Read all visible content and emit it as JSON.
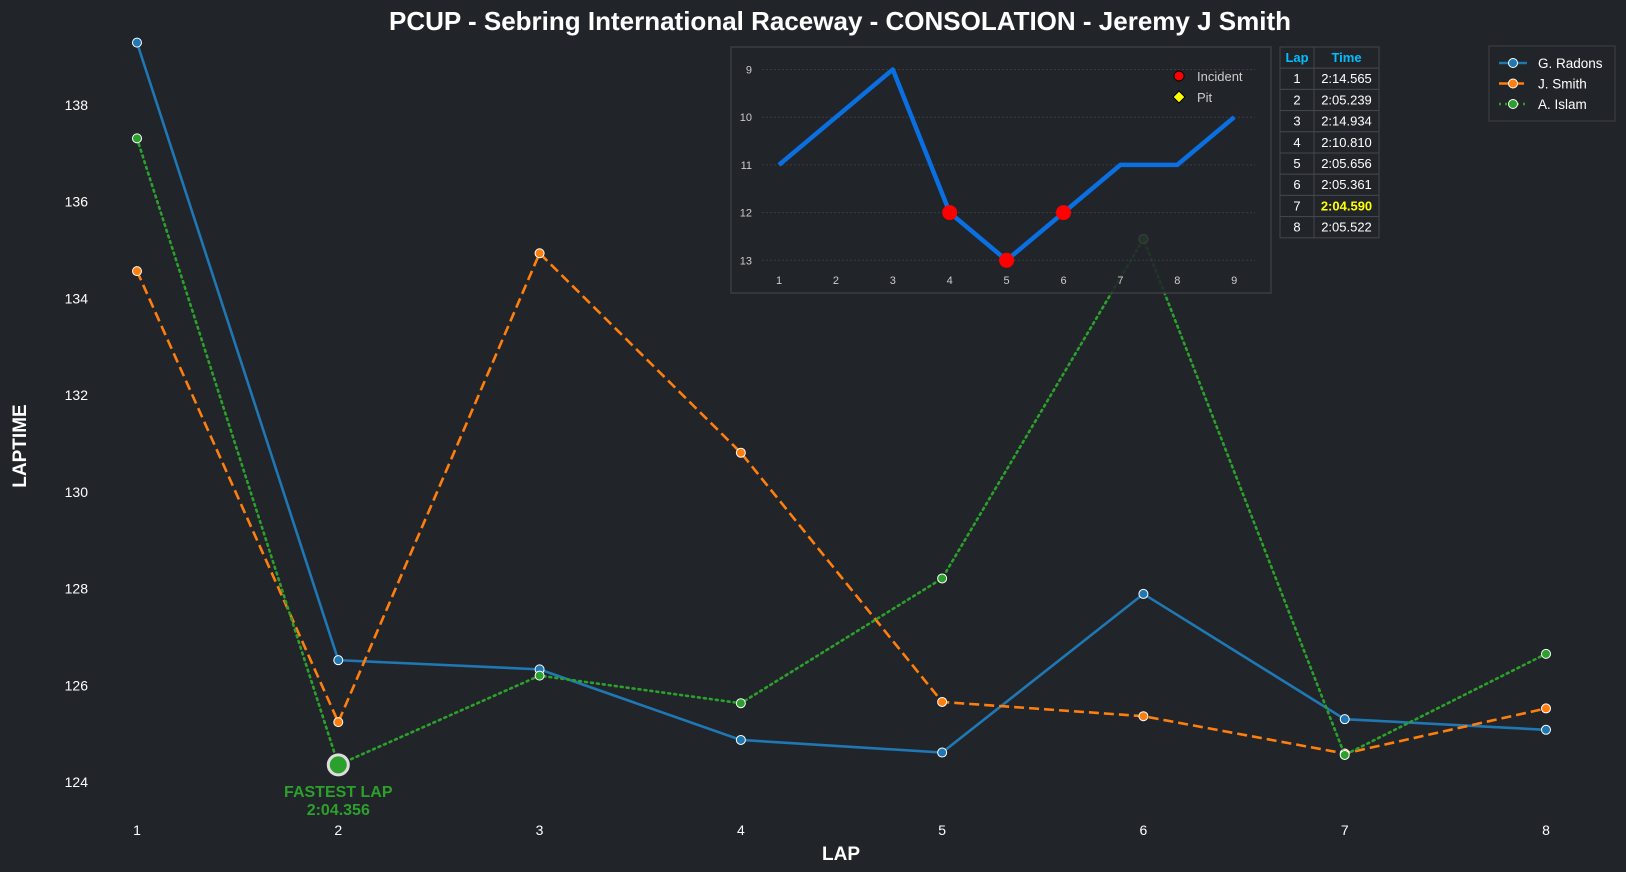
{
  "chart_data": {
    "type": "line",
    "title": "PCUP - Sebring International Raceway - CONSOLATION - Jeremy J Smith",
    "xlabel": "LAP",
    "ylabel": "LAPTIME",
    "x": [
      1,
      2,
      3,
      4,
      5,
      6,
      7,
      8
    ],
    "x_ticks": [
      "1",
      "2",
      "3",
      "4",
      "5",
      "6",
      "7",
      "8"
    ],
    "y_ticks": [
      "124",
      "126",
      "128",
      "130",
      "132",
      "134",
      "136",
      "138"
    ],
    "ylim": [
      123.2,
      139.4
    ],
    "xlim": [
      0.7,
      8.3
    ],
    "grid": false,
    "legend_position": "top-right",
    "series": [
      {
        "name": "G. Radons",
        "color": "#1f77b4",
        "style": "solid",
        "values": [
          139.29,
          126.52,
          126.33,
          124.87,
          124.61,
          127.89,
          125.3,
          125.08
        ]
      },
      {
        "name": "J. Smith",
        "color": "#ff7f0e",
        "style": "dashed",
        "values": [
          134.565,
          125.239,
          134.934,
          130.81,
          125.656,
          125.361,
          124.59,
          125.522
        ]
      },
      {
        "name": "A. Islam",
        "color": "#2ca02c",
        "style": "dotted",
        "values": [
          137.31,
          124.356,
          126.2,
          125.63,
          128.21,
          135.23,
          124.56,
          126.65
        ]
      }
    ],
    "annotation": {
      "label": "FASTEST LAP",
      "value": "2:04.356",
      "lap": 2,
      "laptime": 124.356,
      "color": "#2ca02c"
    },
    "inset": {
      "type": "line",
      "description_label": "position",
      "x": [
        1,
        2,
        3,
        4,
        5,
        6,
        7,
        8,
        9
      ],
      "positions": [
        11,
        10,
        9,
        12,
        13,
        12,
        11,
        11,
        10
      ],
      "x_ticks": [
        "1",
        "2",
        "3",
        "4",
        "5",
        "6",
        "7",
        "8",
        "9"
      ],
      "y_ticks": [
        "9",
        "10",
        "11",
        "12",
        "13"
      ],
      "ylim_inverted": [
        8.6,
        13.5
      ],
      "line_color": "#0a6fe0",
      "incidents": [
        4,
        5,
        6
      ],
      "pits": [],
      "legend": [
        {
          "label": "Incident",
          "color": "#ff0000"
        },
        {
          "label": "Pit",
          "color": "#ffff00"
        }
      ]
    },
    "table": {
      "headers": [
        "Lap",
        "Time"
      ],
      "header_color": "#00bfff",
      "highlight_color": "#ffff00",
      "highlight_lap": 7,
      "rows": [
        [
          "1",
          "2:14.565"
        ],
        [
          "2",
          "2:05.239"
        ],
        [
          "3",
          "2:14.934"
        ],
        [
          "4",
          "2:10.810"
        ],
        [
          "5",
          "2:05.656"
        ],
        [
          "6",
          "2:05.361"
        ],
        [
          "7",
          "2:04.590"
        ],
        [
          "8",
          "2:05.522"
        ]
      ]
    }
  }
}
